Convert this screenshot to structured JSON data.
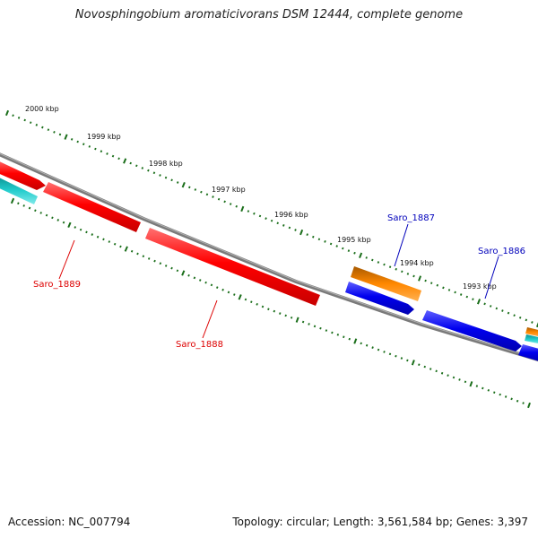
{
  "title": "Novosphingobium aromaticivorans DSM 12444, complete genome",
  "accession": "Accession: NC_007794",
  "summary": "Topology: circular; Length: 3,561,584 bp; Genes: 3,397",
  "tick_labels": [
    "2000 kbp",
    "1999 kbp",
    "1998 kbp",
    "1997 kbp",
    "1996 kbp",
    "1995 kbp",
    "1994 kbp",
    "1993 kbp"
  ],
  "genes": [
    {
      "name": "Saro_1889",
      "color": "#dd0000"
    },
    {
      "name": "Saro_1888",
      "color": "#dd0000"
    },
    {
      "name": "Saro_1887",
      "color": "#0000bb"
    },
    {
      "name": "Saro_1886",
      "color": "#0000bb"
    }
  ],
  "colors": {
    "backbone": "#808080",
    "tick": "#1a6e1a",
    "red_feature": "#ff0000",
    "blue_feature": "#0000ee",
    "orange_feature": "#ff8800",
    "cyan_feature": "#22cccc"
  }
}
